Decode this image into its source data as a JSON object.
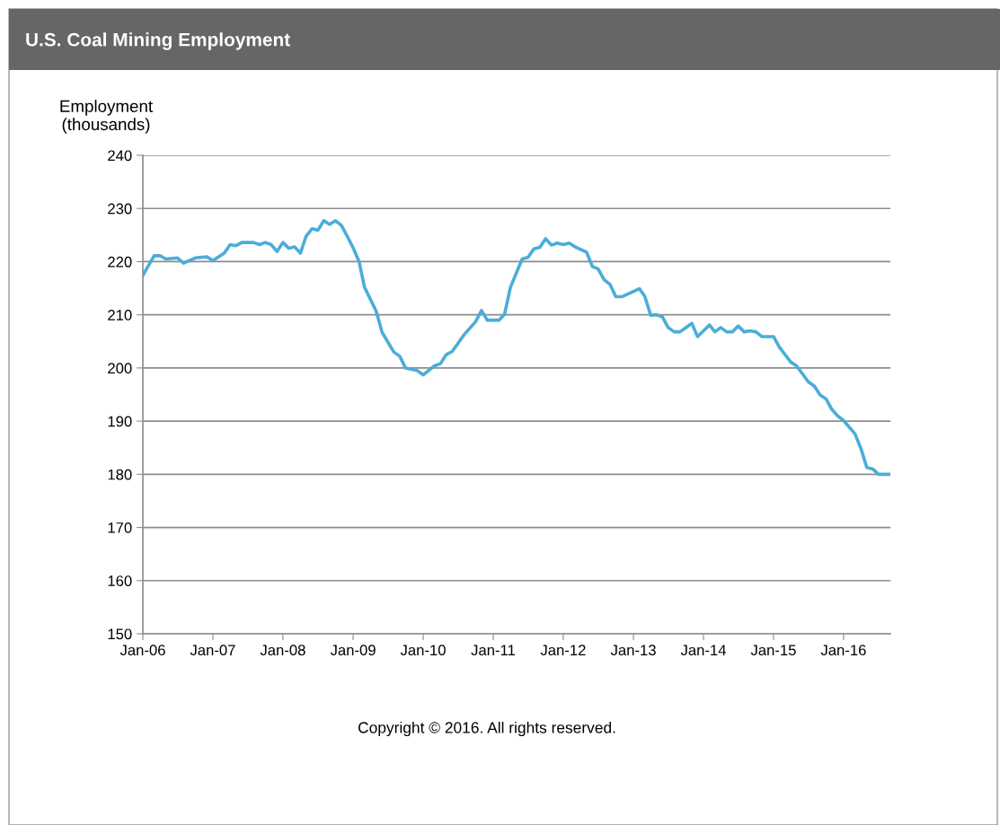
{
  "chart_data": {
    "type": "line",
    "title": "U.S. Coal Mining Employment",
    "ylabel": "Employment\n(thousands)",
    "annotations": [
      "Copyright © 2016. All rights reserved."
    ],
    "x": [
      "2006-01",
      "2006-03",
      "2006-04",
      "2006-05",
      "2006-07",
      "2006-08",
      "2006-10",
      "2006-12",
      "2007-01",
      "2007-03",
      "2007-04",
      "2007-05",
      "2007-06",
      "2007-08",
      "2007-09",
      "2007-10",
      "2007-11",
      "2007-12",
      "2008-01",
      "2008-02",
      "2008-03",
      "2008-04",
      "2008-05",
      "2008-06",
      "2008-07",
      "2008-08",
      "2008-09",
      "2008-10",
      "2008-11",
      "2008-12",
      "2009-01",
      "2009-02",
      "2009-03",
      "2009-05",
      "2009-06",
      "2009-08",
      "2009-09",
      "2009-10",
      "2009-12",
      "2010-01",
      "2010-03",
      "2010-04",
      "2010-05",
      "2010-06",
      "2010-08",
      "2010-10",
      "2010-11",
      "2010-12",
      "2011-02",
      "2011-03",
      "2011-04",
      "2011-06",
      "2011-07",
      "2011-08",
      "2011-09",
      "2011-10",
      "2011-11",
      "2011-12",
      "2012-01",
      "2012-02",
      "2012-03",
      "2012-05",
      "2012-06",
      "2012-07",
      "2012-08",
      "2012-09",
      "2012-10",
      "2012-11",
      "2013-02",
      "2013-03",
      "2013-04",
      "2013-05",
      "2013-06",
      "2013-07",
      "2013-08",
      "2013-09",
      "2013-11",
      "2013-12",
      "2014-02",
      "2014-03",
      "2014-04",
      "2014-05",
      "2014-06",
      "2014-07",
      "2014-08",
      "2014-09",
      "2014-10",
      "2014-11",
      "2015-01",
      "2015-02",
      "2015-04",
      "2015-05",
      "2015-07",
      "2015-08",
      "2015-09",
      "2015-10",
      "2015-11",
      "2015-12",
      "2016-01",
      "2016-03",
      "2016-04",
      "2016-05",
      "2016-06",
      "2016-07",
      "2016-09"
    ],
    "series": [
      {
        "color": "#4badd8",
        "values": [
          217.4,
          221.1,
          221.1,
          220.5,
          220.7,
          219.7,
          220.7,
          220.9,
          220.2,
          221.6,
          223.2,
          223.0,
          223.6,
          223.6,
          223.2,
          223.6,
          223.2,
          221.9,
          223.6,
          222.5,
          222.8,
          221.6,
          224.8,
          226.2,
          225.9,
          227.7,
          227.0,
          227.7,
          226.8,
          224.8,
          222.6,
          220.0,
          215.2,
          210.7,
          206.7,
          203.0,
          202.2,
          200.0,
          199.5,
          198.7,
          200.4,
          200.8,
          202.5,
          203.1,
          206.2,
          208.7,
          210.8,
          209.0,
          209.0,
          210.1,
          215.2,
          220.5,
          220.8,
          222.4,
          222.7,
          224.3,
          223.1,
          223.5,
          223.2,
          223.5,
          222.8,
          221.8,
          219.1,
          218.6,
          216.6,
          215.7,
          213.4,
          213.4,
          214.9,
          213.5,
          209.9,
          210.0,
          209.6,
          207.6,
          206.8,
          206.8,
          208.4,
          205.9,
          208.1,
          206.8,
          207.6,
          206.8,
          206.8,
          207.9,
          206.8,
          207.0,
          206.8,
          205.9,
          205.9,
          203.9,
          201.1,
          200.4,
          197.4,
          196.6,
          194.9,
          194.2,
          192.2,
          191.0,
          190.1,
          187.6,
          184.8,
          181.3,
          181.0,
          180.0,
          180.0
        ]
      }
    ],
    "xlim": [
      "2006-01",
      "2016-09"
    ],
    "xticks": [
      {
        "value": "2006-01",
        "label": "Jan-06"
      },
      {
        "value": "2007-01",
        "label": "Jan-07"
      },
      {
        "value": "2008-01",
        "label": "Jan-08"
      },
      {
        "value": "2009-01",
        "label": "Jan-09"
      },
      {
        "value": "2010-01",
        "label": "Jan-10"
      },
      {
        "value": "2011-01",
        "label": "Jan-11"
      },
      {
        "value": "2012-01",
        "label": "Jan-12"
      },
      {
        "value": "2013-01",
        "label": "Jan-13"
      },
      {
        "value": "2014-01",
        "label": "Jan-14"
      },
      {
        "value": "2015-01",
        "label": "Jan-15"
      },
      {
        "value": "2016-01",
        "label": "Jan-16"
      }
    ],
    "ylim": [
      150,
      240
    ],
    "yticks": [
      150,
      160,
      170,
      180,
      190,
      200,
      210,
      220,
      230,
      240
    ],
    "grid": "y",
    "marker": "none",
    "line_style": "solid"
  }
}
